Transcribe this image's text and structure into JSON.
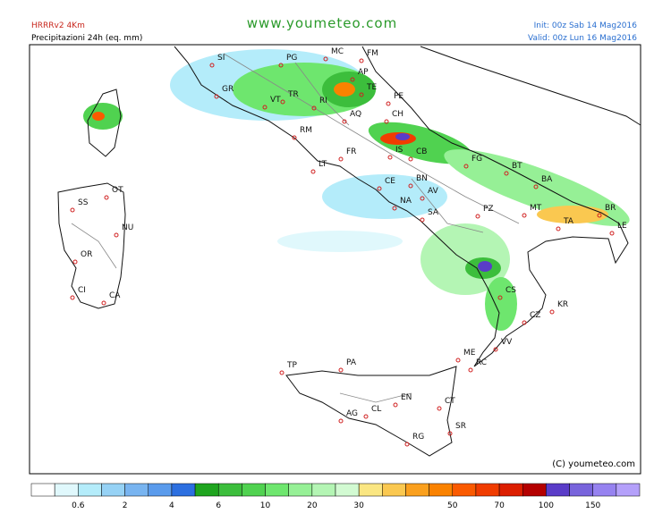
{
  "header": {
    "model": "HRRRv2 4Km",
    "product": "Precipitazioni 24h (eq. mm)",
    "site": "www.youmeteo.com",
    "init": "Init: 00z Sab 14 Mag2016",
    "valid": "Valid: 00z Lun 16 Mag2016"
  },
  "map": {
    "cities": [
      "SI",
      "PG",
      "MC",
      "FM",
      "AP",
      "GR",
      "VT",
      "TR",
      "RI",
      "TE",
      "PE",
      "AQ",
      "CH",
      "RM",
      "IS",
      "CB",
      "FR",
      "FG",
      "LT",
      "BT",
      "CE",
      "BN",
      "BA",
      "AV",
      "NA",
      "SA",
      "PZ",
      "MT",
      "TA",
      "BR",
      "LE",
      "CS",
      "KR",
      "CZ",
      "VV",
      "ME",
      "RC",
      "PA",
      "TP",
      "EN",
      "CL",
      "AG",
      "CT",
      "SR",
      "RG",
      "SS",
      "OT",
      "NU",
      "OR",
      "CA",
      "CI"
    ],
    "copyright": "(C) youmeteo.com"
  },
  "legend": {
    "colors": [
      "#ffffff",
      "#e0f8fc",
      "#b4ecfa",
      "#96d2f5",
      "#78b4f0",
      "#5a9bec",
      "#2c6fe0",
      "#1fa51f",
      "#3cbe3c",
      "#50d250",
      "#6ee66e",
      "#96f096",
      "#b4f5b4",
      "#d2fad2",
      "#fae682",
      "#fac850",
      "#faa01e",
      "#fa8200",
      "#fa5a00",
      "#f03c00",
      "#dc1e00",
      "#b40000",
      "#5a3cc8",
      "#7864dc",
      "#9682f0",
      "#b4a0fa"
    ],
    "labels": [
      0.6,
      2,
      4,
      6,
      10,
      20,
      30,
      50,
      70,
      100,
      150
    ]
  }
}
